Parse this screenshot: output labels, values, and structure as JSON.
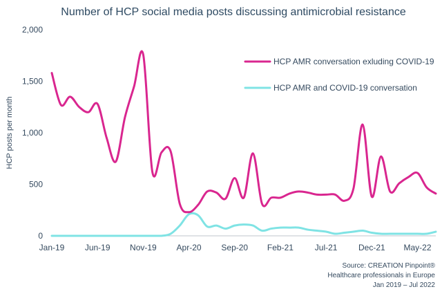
{
  "chart_data": {
    "type": "line",
    "title": "Number of HCP social media posts discussing antimicrobial resistance",
    "xlabel": "",
    "ylabel": "HCP posts per month",
    "ylim": [
      0,
      2000
    ],
    "yticks": [
      0,
      500,
      1000,
      1500,
      2000
    ],
    "ytick_labels": [
      "0",
      "500",
      "1,000",
      "1,500",
      "2,000"
    ],
    "x_tick_labels": [
      "Jan-19",
      "Jun-19",
      "Nov-19",
      "Apr-20",
      "Sep-20",
      "Feb-21",
      "Jul-21",
      "Dec-21",
      "May-22"
    ],
    "x_tick_indices": [
      0,
      5,
      10,
      15,
      20,
      25,
      30,
      35,
      40
    ],
    "x_count": 43,
    "legend_position": "top-right",
    "series": [
      {
        "name": "HCP AMR conversation exluding COVID-19",
        "color": "#d9268f",
        "values": [
          1580,
          1270,
          1350,
          1250,
          1200,
          1280,
          950,
          720,
          1150,
          1450,
          1760,
          620,
          810,
          820,
          310,
          230,
          300,
          430,
          420,
          360,
          560,
          370,
          800,
          310,
          370,
          370,
          410,
          430,
          420,
          400,
          400,
          400,
          340,
          460,
          1080,
          380,
          770,
          430,
          510,
          570,
          610,
          470,
          410
        ]
      },
      {
        "name": "HCP AMR and COVID-19 conversation",
        "color": "#7fe3e4",
        "values": [
          0,
          0,
          0,
          0,
          0,
          0,
          0,
          0,
          0,
          0,
          0,
          0,
          0,
          20,
          100,
          210,
          200,
          90,
          100,
          70,
          100,
          110,
          100,
          50,
          70,
          80,
          80,
          80,
          60,
          50,
          40,
          20,
          30,
          40,
          50,
          30,
          20,
          20,
          20,
          20,
          20,
          20,
          40
        ]
      }
    ]
  },
  "source": {
    "line1": "Source: CREATION Pinpoint®",
    "line2": "Healthcare professionals in Europe",
    "line3": "Jan 2019 – Jul 2022"
  }
}
